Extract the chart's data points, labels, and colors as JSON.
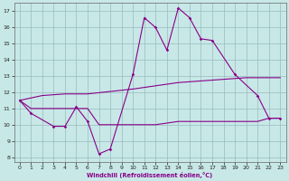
{
  "background_color": "#c8e8e8",
  "grid_color": "#99bbbb",
  "line_color": "#880088",
  "xlabel": "Windchill (Refroidissement éolien,°C)",
  "xlim_min": -0.5,
  "xlim_max": 23.5,
  "ylim_min": 7.7,
  "ylim_max": 17.5,
  "xticks": [
    0,
    1,
    2,
    3,
    4,
    5,
    6,
    7,
    8,
    9,
    10,
    11,
    12,
    13,
    14,
    15,
    16,
    17,
    18,
    19,
    20,
    21,
    22,
    23
  ],
  "yticks": [
    8,
    9,
    10,
    11,
    12,
    13,
    14,
    15,
    16,
    17
  ],
  "spike_x": [
    0,
    1,
    3,
    4,
    5,
    6,
    7,
    8,
    10,
    11,
    12,
    13,
    14,
    15,
    16,
    17,
    19,
    21,
    22,
    23
  ],
  "spike_y": [
    11.5,
    10.7,
    9.9,
    9.9,
    11.1,
    10.2,
    8.2,
    8.5,
    13.1,
    16.6,
    16.0,
    14.6,
    17.2,
    16.6,
    15.3,
    15.2,
    13.1,
    11.8,
    10.4,
    10.4
  ],
  "upper_x": [
    0,
    2,
    3,
    4,
    5,
    6,
    10,
    11,
    12,
    13,
    14,
    15,
    16,
    17,
    18,
    19,
    20,
    21,
    22,
    23
  ],
  "upper_y": [
    11.5,
    11.8,
    11.85,
    11.9,
    11.9,
    11.9,
    12.2,
    12.3,
    12.4,
    12.5,
    12.6,
    12.65,
    12.7,
    12.75,
    12.8,
    12.85,
    12.9,
    12.9,
    12.9,
    12.9
  ],
  "lower_x": [
    0,
    1,
    2,
    3,
    4,
    5,
    6,
    7,
    8,
    9,
    10,
    11,
    12,
    13,
    14,
    15,
    16,
    17,
    18,
    19,
    20,
    21,
    22,
    23
  ],
  "lower_y": [
    11.5,
    11.0,
    11.0,
    11.0,
    11.0,
    11.0,
    11.0,
    10.0,
    10.0,
    10.0,
    10.0,
    10.0,
    10.0,
    10.1,
    10.2,
    10.2,
    10.2,
    10.2,
    10.2,
    10.2,
    10.2,
    10.2,
    10.4,
    10.4
  ]
}
